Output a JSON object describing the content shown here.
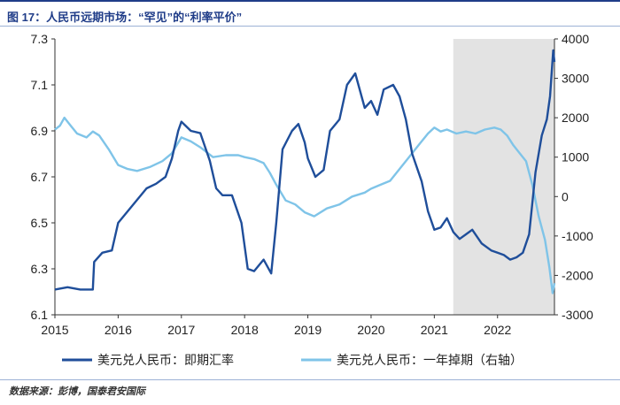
{
  "figure_title": "图 17：人民币远期市场：“罕见”的“利率平价”",
  "source_note": "数据来源：彭博，国泰君安国际",
  "chart_data": {
    "type": "line",
    "title": "",
    "x_ticks": [
      "2015",
      "2016",
      "2017",
      "2018",
      "2019",
      "2020",
      "2021",
      "2022"
    ],
    "x_range": [
      2015.0,
      2022.9
    ],
    "y_left": {
      "ylim": [
        6.1,
        7.3
      ],
      "ticks": [
        "6.1",
        "6.3",
        "6.5",
        "6.7",
        "6.9",
        "7.1",
        "7.3"
      ]
    },
    "y_right": {
      "ylim": [
        -3000,
        4000
      ],
      "ticks": [
        "-3000",
        "-2000",
        "-1000",
        "0",
        "1000",
        "2000",
        "3000",
        "4000"
      ]
    },
    "shaded_region": {
      "x_start": 2021.3,
      "x_end": 2022.9,
      "color": "#e3e3e3"
    },
    "grid": false,
    "legend_position": "bottom",
    "series": [
      {
        "name": "美元兑人民币：即期汇率",
        "axis": "left",
        "color": "#1f4e9a",
        "x": [
          2015.0,
          2015.2,
          2015.4,
          2015.6,
          2015.62,
          2015.75,
          2015.9,
          2016.0,
          2016.15,
          2016.3,
          2016.45,
          2016.6,
          2016.75,
          2016.85,
          2016.95,
          2017.0,
          2017.15,
          2017.3,
          2017.45,
          2017.55,
          2017.65,
          2017.8,
          2017.95,
          2018.05,
          2018.15,
          2018.3,
          2018.42,
          2018.5,
          2018.6,
          2018.75,
          2018.85,
          2018.95,
          2019.0,
          2019.12,
          2019.25,
          2019.35,
          2019.5,
          2019.62,
          2019.75,
          2019.9,
          2020.0,
          2020.1,
          2020.2,
          2020.35,
          2020.45,
          2020.55,
          2020.65,
          2020.8,
          2020.9,
          2021.0,
          2021.1,
          2021.2,
          2021.3,
          2021.4,
          2021.5,
          2021.6,
          2021.75,
          2021.9,
          2022.0,
          2022.1,
          2022.2,
          2022.3,
          2022.4,
          2022.5,
          2022.6,
          2022.7,
          2022.78,
          2022.83,
          2022.88,
          2022.9
        ],
        "y": [
          6.21,
          6.22,
          6.21,
          6.21,
          6.33,
          6.37,
          6.38,
          6.5,
          6.55,
          6.6,
          6.65,
          6.67,
          6.7,
          6.78,
          6.9,
          6.94,
          6.9,
          6.89,
          6.77,
          6.65,
          6.62,
          6.62,
          6.5,
          6.3,
          6.29,
          6.34,
          6.28,
          6.5,
          6.82,
          6.9,
          6.93,
          6.85,
          6.78,
          6.7,
          6.73,
          6.9,
          6.95,
          7.1,
          7.15,
          7.0,
          7.03,
          6.97,
          7.08,
          7.1,
          7.05,
          6.95,
          6.8,
          6.68,
          6.55,
          6.47,
          6.48,
          6.52,
          6.46,
          6.43,
          6.45,
          6.47,
          6.41,
          6.38,
          6.37,
          6.36,
          6.34,
          6.35,
          6.37,
          6.45,
          6.72,
          6.88,
          6.95,
          7.05,
          7.25,
          7.2
        ]
      },
      {
        "name": "美元兑人民币：一年掉期（右轴）",
        "axis": "right",
        "color": "#7fc4e8",
        "x": [
          2015.0,
          2015.08,
          2015.15,
          2015.25,
          2015.35,
          2015.5,
          2015.6,
          2015.7,
          2015.85,
          2016.0,
          2016.15,
          2016.3,
          2016.5,
          2016.7,
          2016.85,
          2017.0,
          2017.15,
          2017.3,
          2017.5,
          2017.7,
          2017.9,
          2018.0,
          2018.15,
          2018.3,
          2018.4,
          2018.5,
          2018.65,
          2018.8,
          2018.95,
          2019.1,
          2019.3,
          2019.5,
          2019.7,
          2019.9,
          2020.0,
          2020.15,
          2020.3,
          2020.45,
          2020.6,
          2020.75,
          2020.9,
          2021.0,
          2021.1,
          2021.2,
          2021.35,
          2021.5,
          2021.65,
          2021.8,
          2021.95,
          2022.05,
          2022.15,
          2022.25,
          2022.35,
          2022.45,
          2022.55,
          2022.65,
          2022.75,
          2022.82,
          2022.87,
          2022.9
        ],
        "y": [
          1700,
          1800,
          2000,
          1800,
          1600,
          1500,
          1650,
          1550,
          1200,
          800,
          700,
          650,
          750,
          900,
          1100,
          1500,
          1400,
          1250,
          1000,
          1050,
          1050,
          1000,
          950,
          850,
          600,
          300,
          -100,
          -200,
          -400,
          -500,
          -300,
          -200,
          0,
          100,
          200,
          300,
          400,
          700,
          1000,
          1300,
          1600,
          1750,
          1650,
          1700,
          1600,
          1650,
          1600,
          1700,
          1750,
          1700,
          1550,
          1300,
          1100,
          900,
          300,
          -500,
          -1100,
          -1800,
          -2450,
          -2200
        ]
      }
    ]
  }
}
